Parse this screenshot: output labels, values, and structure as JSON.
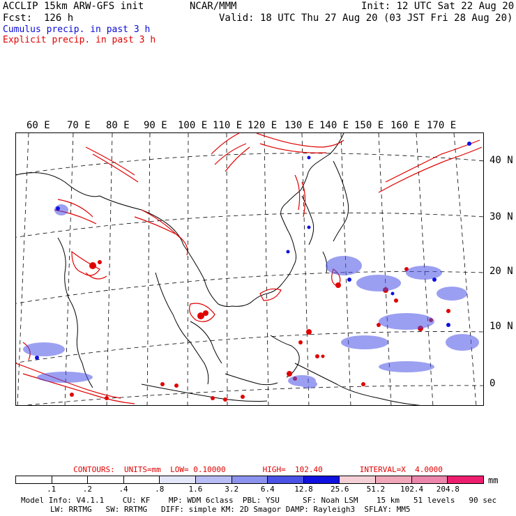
{
  "header": {
    "title_left": "ACCLIP 15km ARW-GFS init",
    "center": "NCAR/MMM",
    "init": "Init: 12 UTC Sat 22 Aug 20",
    "fcst": "Fcst:  126 h",
    "valid": "Valid: 18 UTC Thu 27 Aug 20 (03 JST Fri 28 Aug 20)",
    "legend_cumulus": "Cumulus precip. in past 3 h",
    "legend_explicit": "Explicit precip. in past 3 h"
  },
  "map": {
    "lon_labels": [
      "60 E",
      "70 E",
      "80 E",
      "90 E",
      "100 E",
      "110 E",
      "120 E",
      "130 E",
      "140 E",
      "150 E",
      "160 E",
      "170 E"
    ],
    "lat_labels": [
      "40 N",
      "30 N",
      "20 N",
      "10 N",
      "0"
    ],
    "colors": {
      "cumulus": "#0a0ad6",
      "explicit": "#e00000",
      "coast": "#000000",
      "grid": "#000000"
    }
  },
  "contours": {
    "text": "CONTOURS:  UNITS=mm  LOW= 0.10000        HIGH=  102.40        INTERVAL=X  4.0000"
  },
  "colorbar": {
    "unit": "mm",
    "ticks": [
      ".1",
      ".2",
      ".4",
      ".8",
      "1.6",
      "3.2",
      "6.4",
      "12.8",
      "25.6",
      "51.2",
      "102.4",
      "204.8"
    ],
    "colors": [
      "#ffffff",
      "#ffffff",
      "#ffffff",
      "#ffffff",
      "#e4e6fa",
      "#b9bdf5",
      "#8c93ee",
      "#4b52e6",
      "#1010e0",
      "#f4d0d6",
      "#f0a7b9",
      "#ec86aa",
      "#ee1e6e"
    ]
  },
  "footer": {
    "line1": "Model Info: V4.1.1    CU: KF    MP: WDM 6class  PBL: YSU     SF: Noah LSM    15 km   51 levels   90 sec",
    "line2": "LW: RRTMG   SW: RRTMG   DIFF: simple KM: 2D Smagor DAMP: Rayleigh3  SFLAY: MM5"
  }
}
